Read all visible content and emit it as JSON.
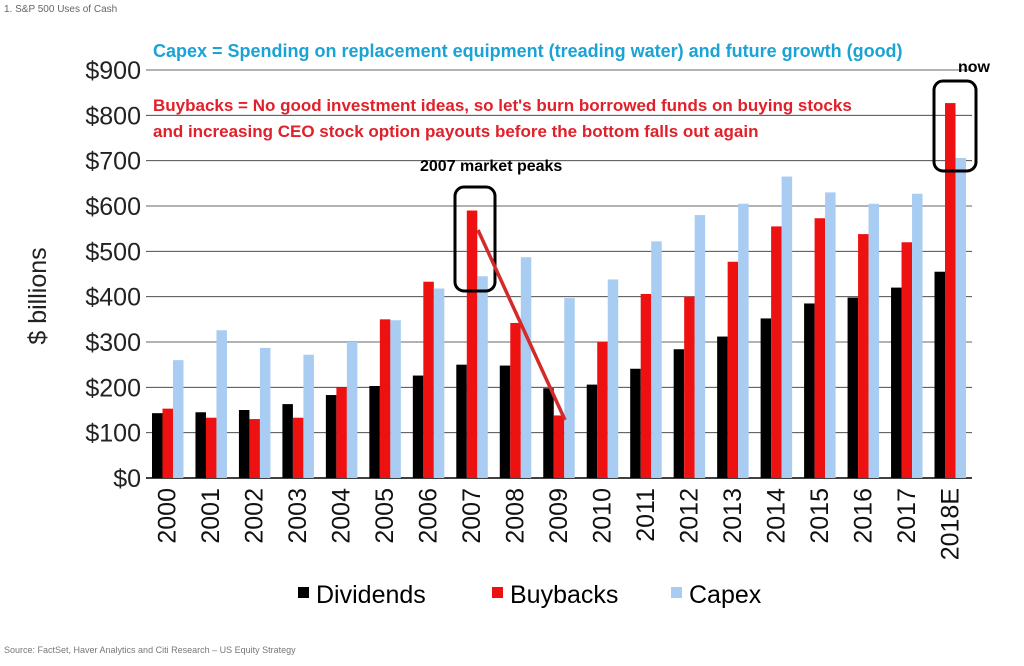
{
  "figure_label": "1. S&P 500 Uses of Cash",
  "source": "Source: FactSet, Haver Analytics and Citi Research – US Equity Strategy",
  "annotations": {
    "capex_note": "Capex = Spending on replacement equipment (treading water) and future growth (good)",
    "buybacks_note_line1": "Buybacks = No good investment ideas, so let's burn borrowed funds on buying stocks",
    "buybacks_note_line2": "and increasing CEO stock option payouts before the bottom falls out again",
    "peak_label": "2007 market peaks",
    "now_label": "now"
  },
  "colors": {
    "dividends": "#000000",
    "buybacks": "#ee1111",
    "capex": "#a9cdf2",
    "capex_note": "#1aa3d4",
    "buybacks_note": "#e0202a",
    "arrow": "#d42a2a",
    "grid": "#333333"
  },
  "chart_data": {
    "type": "bar",
    "title": "S&P 500 Uses of Cash",
    "xlabel": "",
    "ylabel": "$ billions",
    "ylim": [
      0,
      900
    ],
    "y_ticks": [
      0,
      100,
      200,
      300,
      400,
      500,
      600,
      700,
      800,
      900
    ],
    "y_tick_labels": [
      "$0",
      "$100",
      "$200",
      "$300",
      "$400",
      "$500",
      "$600",
      "$700",
      "$800",
      "$900"
    ],
    "grid": true,
    "legend_position": "bottom",
    "categories": [
      "2000",
      "2001",
      "2002",
      "2003",
      "2004",
      "2005",
      "2006",
      "2007",
      "2008",
      "2009",
      "2010",
      "2011",
      "2012",
      "2013",
      "2014",
      "2015",
      "2016",
      "2017",
      "2018E"
    ],
    "series": [
      {
        "name": "Dividends",
        "values": [
          143,
          145,
          150,
          163,
          183,
          203,
          226,
          250,
          248,
          198,
          206,
          241,
          284,
          312,
          352,
          385,
          398,
          420,
          455
        ]
      },
      {
        "name": "Buybacks",
        "values": [
          153,
          133,
          130,
          133,
          200,
          350,
          433,
          590,
          342,
          138,
          300,
          406,
          400,
          477,
          555,
          573,
          538,
          520,
          827
        ]
      },
      {
        "name": "Capex",
        "values": [
          260,
          326,
          287,
          272,
          300,
          348,
          418,
          445,
          487,
          397,
          438,
          522,
          580,
          605,
          665,
          630,
          605,
          627,
          706
        ]
      }
    ]
  }
}
